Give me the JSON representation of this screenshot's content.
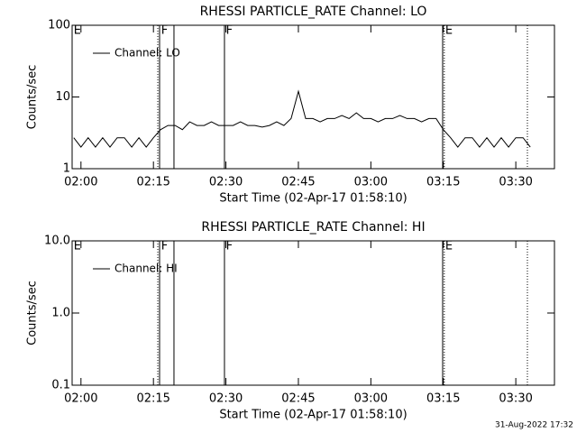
{
  "chart_data": [
    {
      "type": "line",
      "title": "RHESSI PARTICLE_RATE Channel: LO",
      "ylabel": "Counts/sec",
      "xlabel": "Start Time (02-Apr-17 01:58:10)",
      "log_y": true,
      "ylim": [
        1,
        100
      ],
      "yticks": [
        1,
        10,
        100
      ],
      "xlim": [
        118.17,
        218
      ],
      "xticks": [
        {
          "value": 120,
          "label": "02:00"
        },
        {
          "value": 135,
          "label": "02:15"
        },
        {
          "value": 150,
          "label": "02:30"
        },
        {
          "value": 165,
          "label": "02:45"
        },
        {
          "value": 180,
          "label": "03:00"
        },
        {
          "value": 195,
          "label": "03:15"
        },
        {
          "value": 210,
          "label": "03:30"
        }
      ],
      "legend": "upper left",
      "vlines": [
        {
          "x": 135.9,
          "style": "dotted"
        },
        {
          "x": 136.27,
          "style": "solid"
        },
        {
          "x": 139.25,
          "style": "solid"
        },
        {
          "x": 149.7,
          "style": "solid"
        },
        {
          "x": 194.86,
          "style": "solid"
        },
        {
          "x": 195.2,
          "style": "dotted"
        },
        {
          "x": 212.4,
          "style": "dotted"
        }
      ],
      "annotations": [
        {
          "text": "E",
          "x": 118.5
        },
        {
          "text": "F",
          "x": 136.6
        },
        {
          "text": "F",
          "x": 150
        },
        {
          "text": "E",
          "x": 195.4
        }
      ],
      "x": [
        118.5,
        120,
        121.5,
        123,
        124.5,
        126,
        127.5,
        129,
        130.5,
        132,
        133.5,
        135,
        136.5,
        138,
        139.5,
        141,
        142.5,
        144,
        145.5,
        147,
        148.5,
        150,
        151.5,
        153,
        154.5,
        156,
        157.5,
        159,
        160.5,
        162,
        163.5,
        165,
        166.5,
        168,
        169.5,
        171,
        172.5,
        174,
        175.5,
        177,
        178.5,
        180,
        181.5,
        183,
        184.5,
        186,
        187.5,
        189,
        190.5,
        192,
        193.5,
        195,
        196.5,
        198,
        199.5,
        201,
        202.5,
        204,
        205.5,
        207,
        208.5,
        210,
        211.5,
        213
      ],
      "series": [
        {
          "name": "Channel: LO",
          "color": "#000000",
          "values": [
            2.7,
            2,
            2.7,
            2,
            2.7,
            2,
            2.7,
            2.7,
            2,
            2.7,
            2,
            2.7,
            3.5,
            4,
            4,
            3.5,
            4.5,
            4,
            4,
            4.5,
            4,
            4,
            4,
            4.5,
            4,
            4,
            3.8,
            4,
            4.5,
            4,
            5,
            12,
            5,
            5,
            4.5,
            5,
            5,
            5.5,
            5,
            6,
            5,
            5,
            4.5,
            5,
            5,
            5.5,
            5,
            5,
            4.5,
            5,
            5,
            3.5,
            2.7,
            2,
            2.7,
            2.7,
            2,
            2.7,
            2,
            2.7,
            2,
            2.7,
            2.7,
            2
          ]
        }
      ]
    },
    {
      "type": "line",
      "title": "RHESSI PARTICLE_RATE Channel: HI",
      "ylabel": "Counts/sec",
      "xlabel": "Start Time (02-Apr-17 01:58:10)",
      "log_y": true,
      "ylim": [
        0.1,
        10
      ],
      "yticks": [
        0.1,
        {
          "value": 1,
          "label": "1.0"
        },
        {
          "value": 10,
          "label": "10.0"
        }
      ],
      "xlim": [
        118.17,
        218
      ],
      "xticks": [
        {
          "value": 120,
          "label": "02:00"
        },
        {
          "value": 135,
          "label": "02:15"
        },
        {
          "value": 150,
          "label": "02:30"
        },
        {
          "value": 165,
          "label": "02:45"
        },
        {
          "value": 180,
          "label": "03:00"
        },
        {
          "value": 195,
          "label": "03:15"
        },
        {
          "value": 210,
          "label": "03:30"
        }
      ],
      "legend": "upper left",
      "vlines": [
        {
          "x": 135.9,
          "style": "dotted"
        },
        {
          "x": 136.27,
          "style": "solid"
        },
        {
          "x": 139.25,
          "style": "solid"
        },
        {
          "x": 149.7,
          "style": "solid"
        },
        {
          "x": 194.86,
          "style": "solid"
        },
        {
          "x": 195.2,
          "style": "dotted"
        },
        {
          "x": 212.4,
          "style": "dotted"
        }
      ],
      "annotations": [
        {
          "text": "E",
          "x": 118.5
        },
        {
          "text": "F",
          "x": 136.6
        },
        {
          "text": "F",
          "x": 150
        },
        {
          "text": "E",
          "x": 195.4
        }
      ],
      "x": [],
      "series": [
        {
          "name": "Channel: HI",
          "color": "#000000",
          "values": []
        }
      ]
    }
  ],
  "footer": "31-Aug-2022 17:32"
}
